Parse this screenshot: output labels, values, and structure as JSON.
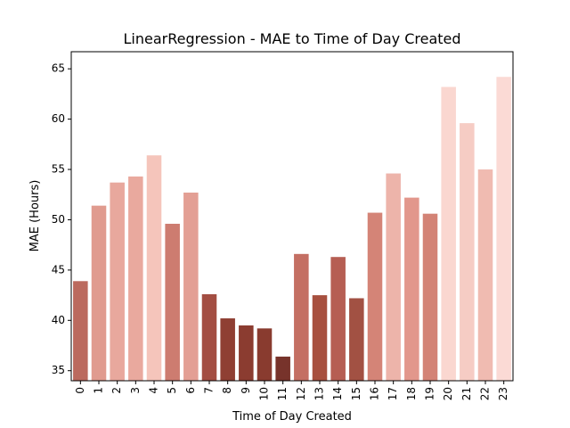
{
  "chart_data": {
    "type": "bar",
    "title": "LinearRegression - MAE to Time of Day Created",
    "xlabel": "Time of Day Created",
    "ylabel": "MAE (Hours)",
    "categories": [
      "0",
      "1",
      "2",
      "3",
      "4",
      "5",
      "6",
      "7",
      "8",
      "9",
      "10",
      "11",
      "12",
      "13",
      "14",
      "15",
      "16",
      "17",
      "18",
      "19",
      "20",
      "21",
      "22",
      "23"
    ],
    "values": [
      43.9,
      51.4,
      53.7,
      54.3,
      56.4,
      49.6,
      52.7,
      42.6,
      40.2,
      39.5,
      39.2,
      36.4,
      46.6,
      42.5,
      46.3,
      42.2,
      50.7,
      54.6,
      52.2,
      50.6,
      63.2,
      59.6,
      55.0,
      64.2
    ],
    "colors": [
      "#bb6a5e",
      "#e09b8f",
      "#e8a89d",
      "#e9a99e",
      "#f5c5bb",
      "#cd7c70",
      "#e39f94",
      "#a34e42",
      "#8f3f33",
      "#8b3c30",
      "#893b2f",
      "#77332b",
      "#c46f63",
      "#a7503f",
      "#b65e53",
      "#a25143",
      "#d48477",
      "#edb4aa",
      "#e2978c",
      "#d38376",
      "#fad7d0",
      "#f6ccc4",
      "#f0bbb1",
      "#fbdad5"
    ],
    "yticks": [
      35,
      40,
      45,
      50,
      55,
      60,
      65
    ],
    "ylim": [
      34,
      66.7
    ],
    "grid": false,
    "legend": "none"
  }
}
